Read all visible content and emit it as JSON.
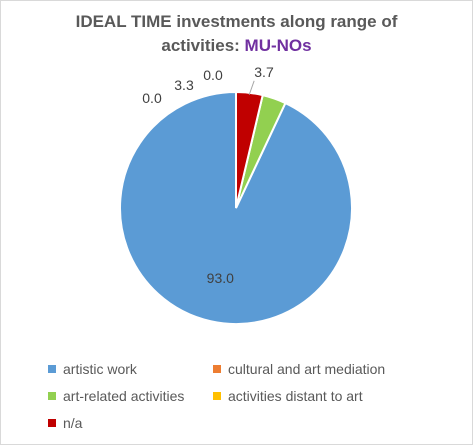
{
  "chart_data": {
    "type": "pie",
    "title": {
      "line1": "IDEAL TIME investments along range of",
      "line2_prefix": "activities: ",
      "line2_accent": "MU-NOs"
    },
    "categories": [
      "artistic work",
      "cultural and art mediation",
      "art-related activities",
      "activities distant to art",
      "n/a"
    ],
    "values": [
      93.0,
      0.0,
      3.3,
      0.0,
      3.7
    ],
    "value_labels": [
      "93.0",
      "0.0",
      "3.3",
      "0.0",
      "3.7"
    ],
    "colors": [
      "#5b9bd5",
      "#ed7d31",
      "#92d050",
      "#ffc000",
      "#c00000"
    ],
    "start": "12 o'clock, counter-clockwise",
    "legend_position": "bottom"
  }
}
